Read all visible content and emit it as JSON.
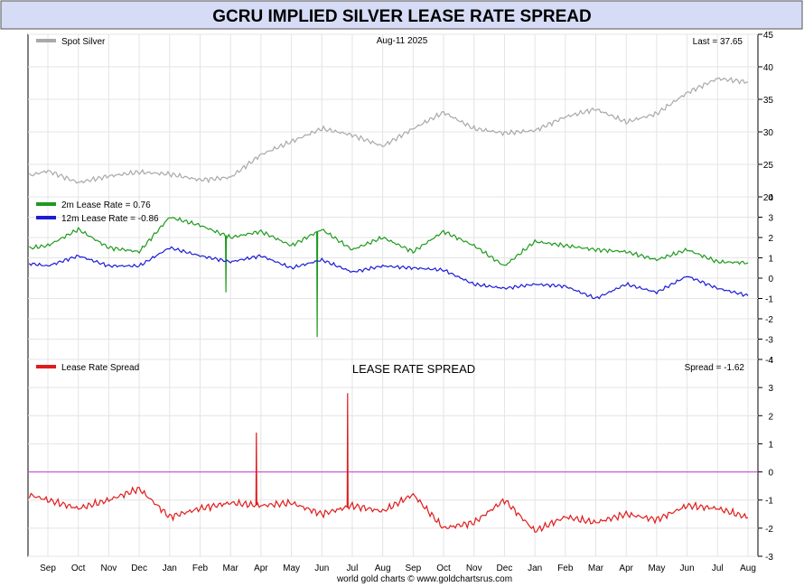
{
  "header": {
    "title": "GCRU IMPLIED SILVER LEASE RATE SPREAD"
  },
  "footer": {
    "credit": "world gold charts © www.goldchartsrus.com"
  },
  "colors": {
    "spot": "#a9a9a9",
    "lease2m": "#1e9a1e",
    "lease12m": "#1c1cd6",
    "spread": "#e01b1b",
    "zero_line": "#c23bd1",
    "title_bg": "#d6dcf5"
  },
  "x_axis": {
    "tick_labels": [
      "Sep",
      "Oct",
      "Nov",
      "Dec",
      "Jan",
      "Feb",
      "Mar",
      "Apr",
      "May",
      "Jun",
      "Jul",
      "Aug",
      "Sep",
      "Oct",
      "Nov",
      "Dec",
      "Jan",
      "Feb",
      "Mar",
      "Apr",
      "May",
      "Jun",
      "Jul",
      "Aug"
    ]
  },
  "chart_data": [
    {
      "type": "line",
      "panel": "spot",
      "date_label": "Aug-11  2025",
      "last_label": "Last = 37.65",
      "legend": [
        {
          "label": "Spot Silver",
          "color": "#a9a9a9"
        }
      ],
      "ylim": [
        20,
        45
      ],
      "yticks": [
        20,
        25,
        30,
        35,
        40,
        45
      ],
      "series": [
        {
          "name": "Spot Silver",
          "x": [
            "2023-08",
            "2023-09",
            "2023-10",
            "2023-11",
            "2023-12",
            "2024-01",
            "2024-02",
            "2024-03",
            "2024-04",
            "2024-05",
            "2024-06",
            "2024-07",
            "2024-08",
            "2024-09",
            "2024-10",
            "2024-11",
            "2024-12",
            "2025-01",
            "2025-02",
            "2025-03",
            "2025-04",
            "2025-05",
            "2025-06",
            "2025-07",
            "2025-08"
          ],
          "values": [
            22.8,
            24.0,
            22.2,
            23.2,
            23.8,
            23.5,
            22.6,
            23.0,
            26.5,
            28.5,
            30.5,
            29.5,
            27.8,
            30.5,
            33.0,
            30.5,
            29.8,
            30.2,
            32.3,
            33.5,
            31.5,
            32.8,
            36.0,
            38.2,
            37.65
          ]
        }
      ]
    },
    {
      "type": "line",
      "panel": "lease",
      "legend": [
        {
          "label": "2m Lease Rate =  0.76",
          "color": "#1e9a1e"
        },
        {
          "label": "12m Lease Rate =  -0.86",
          "color": "#1c1cd6"
        }
      ],
      "ylim": [
        -4,
        4
      ],
      "yticks": [
        -4,
        -3,
        -2,
        -1,
        0,
        1,
        2,
        3,
        4
      ],
      "series": [
        {
          "name": "2m Lease Rate",
          "x": [
            "2023-08",
            "2023-09",
            "2023-10",
            "2023-11",
            "2023-12",
            "2024-01",
            "2024-02",
            "2024-03",
            "2024-04",
            "2024-05",
            "2024-06",
            "2024-07",
            "2024-08",
            "2024-09",
            "2024-10",
            "2024-11",
            "2024-12",
            "2025-01",
            "2025-02",
            "2025-03",
            "2025-04",
            "2025-05",
            "2025-06",
            "2025-07",
            "2025-08"
          ],
          "values": [
            1.4,
            1.6,
            2.4,
            1.5,
            1.3,
            3.0,
            2.6,
            2.0,
            2.3,
            1.6,
            2.4,
            1.4,
            2.0,
            1.3,
            2.3,
            1.6,
            0.6,
            1.8,
            1.6,
            1.4,
            1.3,
            0.9,
            1.4,
            0.8,
            0.76
          ]
        },
        {
          "name": "12m Lease Rate",
          "x": [
            "2023-08",
            "2023-09",
            "2023-10",
            "2023-11",
            "2023-12",
            "2024-01",
            "2024-02",
            "2024-03",
            "2024-04",
            "2024-05",
            "2024-06",
            "2024-07",
            "2024-08",
            "2024-09",
            "2024-10",
            "2024-11",
            "2024-12",
            "2025-01",
            "2025-02",
            "2025-03",
            "2025-04",
            "2025-05",
            "2025-06",
            "2025-07",
            "2025-08"
          ],
          "values": [
            0.8,
            0.6,
            1.1,
            0.6,
            0.6,
            1.5,
            1.1,
            0.8,
            1.1,
            0.5,
            0.9,
            0.3,
            0.6,
            0.5,
            0.4,
            -0.3,
            -0.5,
            -0.3,
            -0.4,
            -1.0,
            -0.3,
            -0.7,
            0.1,
            -0.5,
            -0.86
          ]
        }
      ]
    },
    {
      "type": "line",
      "panel": "spread",
      "title": "LEASE RATE SPREAD",
      "last_label": "Spread = -1.62",
      "legend": [
        {
          "label": "Lease Rate Spread",
          "color": "#e01b1b"
        }
      ],
      "ylim": [
        -3,
        4
      ],
      "yticks": [
        -3,
        -2,
        -1,
        0,
        1,
        2,
        3,
        4
      ],
      "series": [
        {
          "name": "Lease Rate Spread",
          "x": [
            "2023-08",
            "2023-09",
            "2023-10",
            "2023-11",
            "2023-12",
            "2024-01",
            "2024-02",
            "2024-03",
            "2024-04",
            "2024-05",
            "2024-06",
            "2024-07",
            "2024-08",
            "2024-09",
            "2024-10",
            "2024-11",
            "2024-12",
            "2025-01",
            "2025-02",
            "2025-03",
            "2025-04",
            "2025-05",
            "2025-06",
            "2025-07",
            "2025-08"
          ],
          "values": [
            -0.7,
            -1.0,
            -1.3,
            -1.0,
            -0.6,
            -1.6,
            -1.3,
            -1.1,
            -1.2,
            -1.1,
            -1.5,
            -1.2,
            -1.4,
            -0.8,
            -2.0,
            -1.8,
            -1.0,
            -2.1,
            -1.6,
            -1.8,
            -1.5,
            -1.7,
            -1.2,
            -1.3,
            -1.62
          ]
        }
      ],
      "spikes": [
        {
          "x": "2024-03",
          "value": 1.4
        },
        {
          "x": "2024-06",
          "value": 2.8
        }
      ]
    }
  ]
}
